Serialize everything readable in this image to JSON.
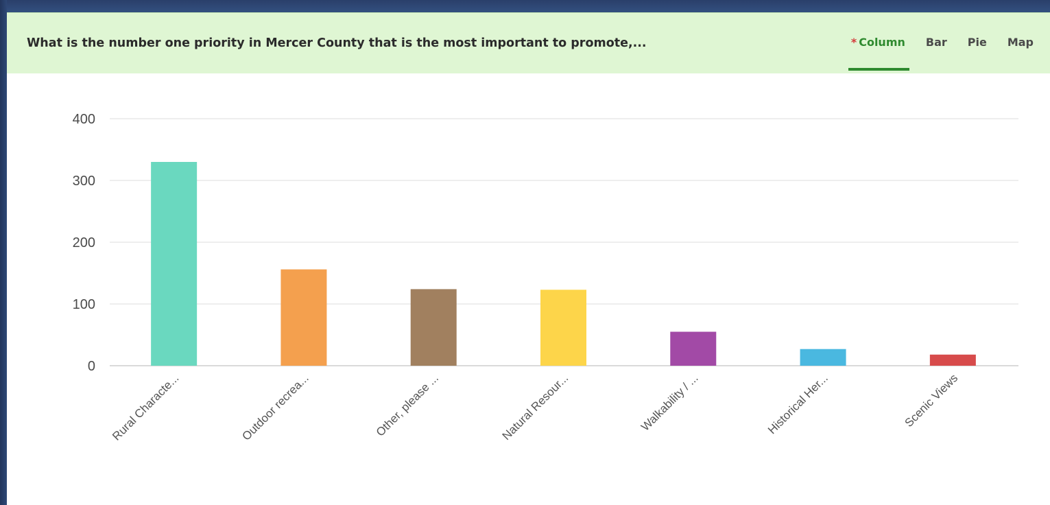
{
  "header": {
    "question": "What is the number one priority in Mercer County that is the most important to promote,...",
    "tabs": [
      {
        "label": "Column",
        "active": true
      },
      {
        "label": "Bar",
        "active": false
      },
      {
        "label": "Pie",
        "active": false
      },
      {
        "label": "Map",
        "active": false
      }
    ],
    "active_marker_icon": "asterisk-icon"
  },
  "colors": {
    "header_bg": "#dff6d3",
    "active_tab": "#2f8a2f",
    "active_marker": "#d43c3c",
    "frame": "#2e4876"
  },
  "chart_data": {
    "type": "bar",
    "categories": [
      "Rural Characte...",
      "Outdoor recrea...",
      "Other, please ...",
      "Natural Resour...",
      "Walkability / ...",
      "Historical Her...",
      "Scenic Views"
    ],
    "values": [
      330,
      156,
      124,
      123,
      55,
      27,
      18
    ],
    "colors": [
      "#6ad8bf",
      "#f4a04e",
      "#a1805f",
      "#fdd54a",
      "#a24aa6",
      "#4ab8e0",
      "#d74b4b"
    ],
    "yticks": [
      0,
      100,
      200,
      300,
      400
    ],
    "ylim": [
      0,
      400
    ],
    "grid": true,
    "xlabel": "",
    "ylabel": ""
  }
}
